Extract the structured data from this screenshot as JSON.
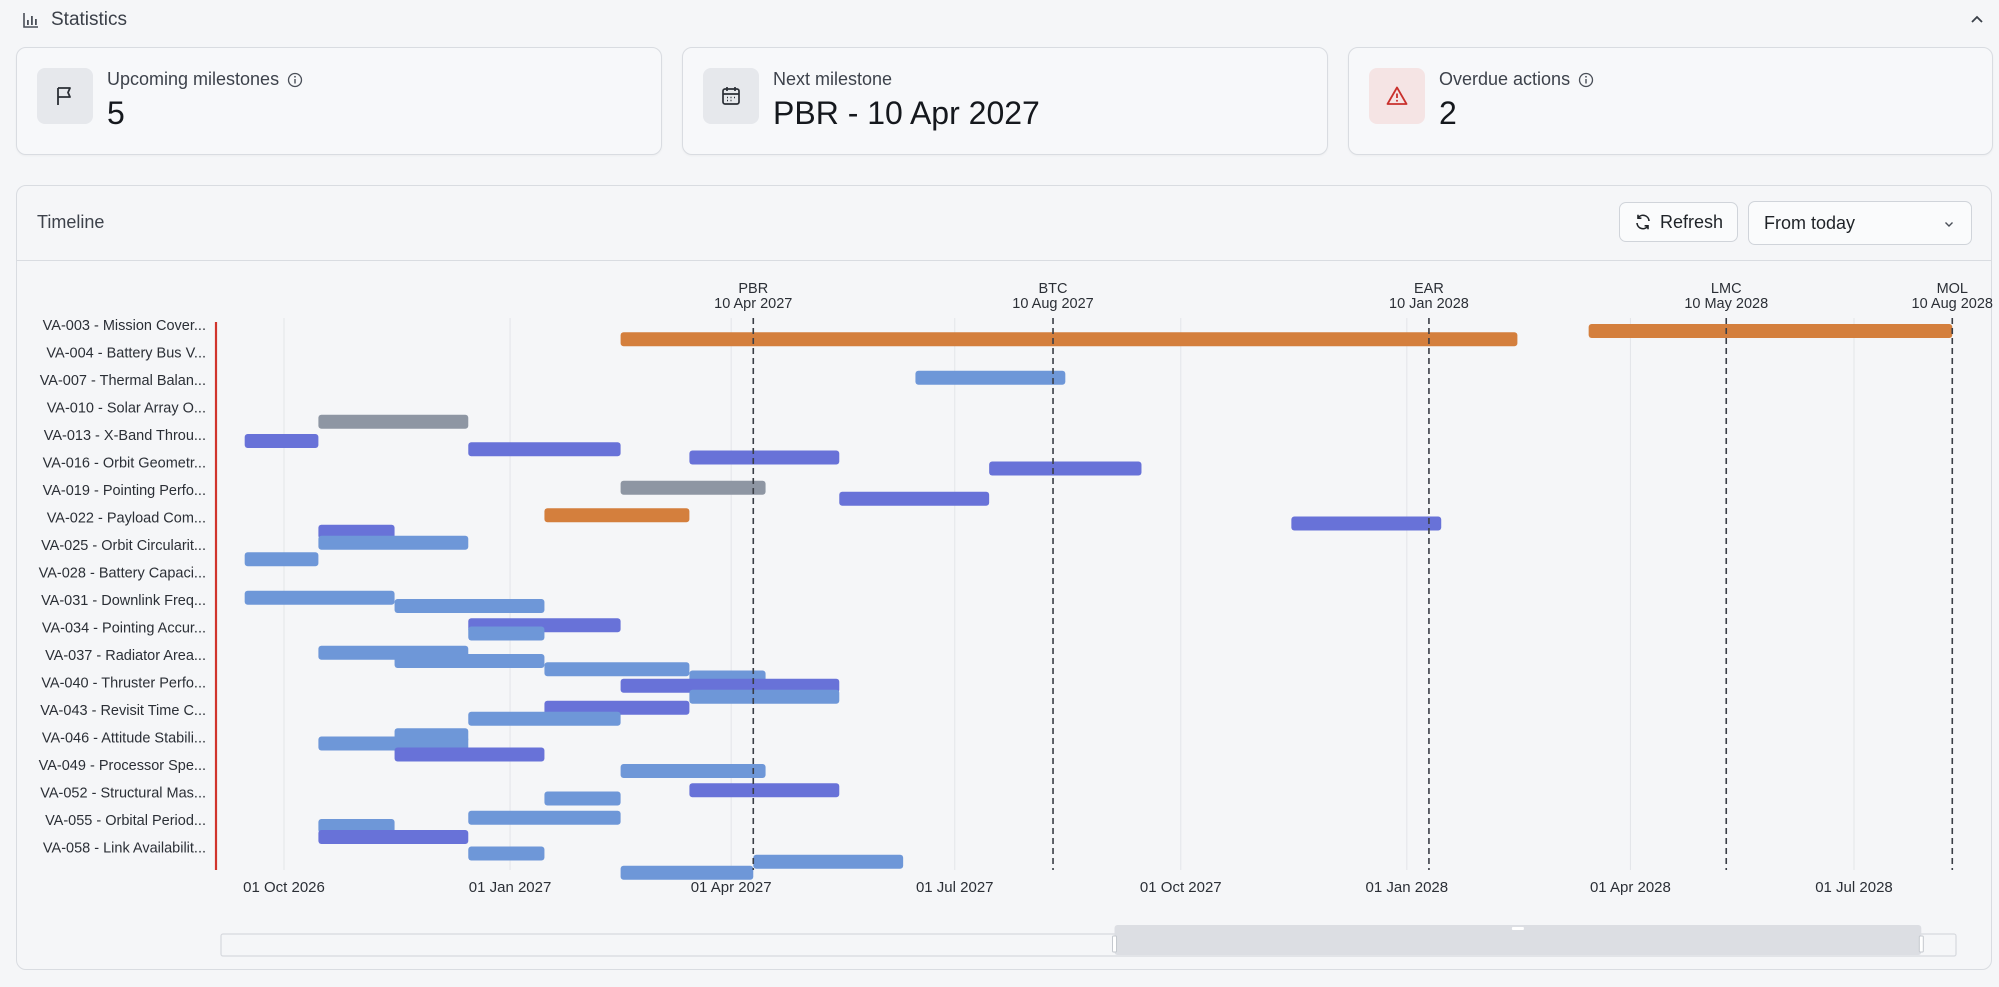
{
  "statistics": {
    "title": "Statistics",
    "cards": [
      {
        "label": "Upcoming milestones",
        "value": "5",
        "icon": "flag-icon"
      },
      {
        "label": "Next milestone",
        "value": "PBR - 10 Apr 2027",
        "icon": "calendar-icon"
      },
      {
        "label": "Overdue actions",
        "value": "2",
        "icon": "warning-triangle-icon"
      }
    ]
  },
  "timeline": {
    "title": "Timeline",
    "refresh_label": "Refresh",
    "range_select": "From today"
  },
  "colors": {
    "orange": "#d47f3d",
    "light_blue": "#6e97d8",
    "indigo": "#6872d8",
    "gray": "#8e96a3",
    "today_line": "#d0342c"
  },
  "chart_data": {
    "type": "gantt",
    "x_ticks": [
      "01 Oct 2026",
      "01 Jan 2027",
      "01 Apr 2027",
      "01 Jul 2027",
      "01 Oct 2027",
      "01 Jan 2028",
      "01 Apr 2028",
      "01 Jul 2028"
    ],
    "milestones": [
      {
        "name": "PBR",
        "date": "10 Apr 2027"
      },
      {
        "name": "BTC",
        "date": "10 Aug 2027"
      },
      {
        "name": "EAR",
        "date": "10 Jan 2028"
      },
      {
        "name": "LMC",
        "date": "10 May 2028"
      },
      {
        "name": "MOL",
        "date": "10 Aug 2028"
      }
    ],
    "rows": [
      "VA-003 - Mission Cover...",
      "VA-004 - Battery Bus V...",
      "VA-007 - Thermal Balan...",
      "VA-010 - Solar Array O...",
      "VA-013 - X-Band Throu...",
      "VA-016 - Orbit Geometr...",
      "VA-019 - Pointing Perfo...",
      "VA-022 - Payload Com...",
      "VA-025 - Orbit Circularit...",
      "VA-028 - Battery Capaci...",
      "VA-031 - Downlink Freq...",
      "VA-034 - Pointing Accur...",
      "VA-037 - Radiator Area...",
      "VA-040 - Thruster Perfo...",
      "VA-043 - Revisit Time C...",
      "VA-046 - Attitude Stabili...",
      "VA-049 - Processor Spe...",
      "VA-052 - Structural Mas...",
      "VA-055 - Orbital Period...",
      "VA-058 - Link Availabilit..."
    ],
    "bars": [
      {
        "start": "2027-02-15",
        "end": "2028-02-15",
        "color": "orange",
        "row": 0.3
      },
      {
        "start": "2028-03-15",
        "end": "2028-08-10",
        "color": "orange",
        "row": 0.0
      },
      {
        "start": "2027-06-15",
        "end": "2027-08-15",
        "color": "light_blue",
        "row": 1.7
      },
      {
        "start": "2026-10-15",
        "end": "2026-12-15",
        "color": "gray",
        "row": 3.3
      },
      {
        "start": "2026-09-15",
        "end": "2026-10-15",
        "color": "indigo",
        "row": 4.0
      },
      {
        "start": "2026-12-15",
        "end": "2027-02-15",
        "color": "indigo",
        "row": 4.3
      },
      {
        "start": "2027-03-15",
        "end": "2027-05-15",
        "color": "indigo",
        "row": 4.6
      },
      {
        "start": "2027-07-15",
        "end": "2027-09-15",
        "color": "indigo",
        "row": 5.0
      },
      {
        "start": "2027-02-15",
        "end": "2027-04-15",
        "color": "gray",
        "row": 5.7
      },
      {
        "start": "2027-05-15",
        "end": "2027-07-15",
        "color": "indigo",
        "row": 6.1
      },
      {
        "start": "2027-01-15",
        "end": "2027-03-15",
        "color": "orange",
        "row": 6.7
      },
      {
        "start": "2027-11-15",
        "end": "2028-01-15",
        "color": "indigo",
        "row": 7.0
      },
      {
        "start": "2026-10-15",
        "end": "2026-11-15",
        "color": "indigo",
        "row": 7.3
      },
      {
        "start": "2026-10-15",
        "end": "2026-12-15",
        "color": "light_blue",
        "row": 7.7
      },
      {
        "start": "2026-09-15",
        "end": "2026-10-15",
        "color": "light_blue",
        "row": 8.3
      },
      {
        "start": "2026-09-15",
        "end": "2026-11-15",
        "color": "light_blue",
        "row": 9.7
      },
      {
        "start": "2026-11-15",
        "end": "2027-01-15",
        "color": "light_blue",
        "row": 10.0
      },
      {
        "start": "2026-12-15",
        "end": "2027-02-15",
        "color": "indigo",
        "row": 10.7
      },
      {
        "start": "2026-12-15",
        "end": "2027-01-15",
        "color": "light_blue",
        "row": 11.0
      },
      {
        "start": "2026-10-15",
        "end": "2026-12-15",
        "color": "light_blue",
        "row": 11.7
      },
      {
        "start": "2026-11-15",
        "end": "2027-01-15",
        "color": "light_blue",
        "row": 12.0
      },
      {
        "start": "2027-01-15",
        "end": "2027-03-15",
        "color": "light_blue",
        "row": 12.3
      },
      {
        "start": "2027-03-15",
        "end": "2027-04-15",
        "color": "light_blue",
        "row": 12.6
      },
      {
        "start": "2027-02-15",
        "end": "2027-05-15",
        "color": "indigo",
        "row": 12.9
      },
      {
        "start": "2027-03-15",
        "end": "2027-05-15",
        "color": "light_blue",
        "row": 13.3
      },
      {
        "start": "2027-01-15",
        "end": "2027-03-15",
        "color": "indigo",
        "row": 13.7
      },
      {
        "start": "2026-12-15",
        "end": "2027-02-15",
        "color": "light_blue",
        "row": 14.1
      },
      {
        "start": "2026-11-15",
        "end": "2026-12-15",
        "color": "light_blue",
        "row": 14.7
      },
      {
        "start": "2026-10-15",
        "end": "2026-12-15",
        "color": "light_blue",
        "row": 15.0
      },
      {
        "start": "2026-11-15",
        "end": "2027-01-15",
        "color": "indigo",
        "row": 15.4
      },
      {
        "start": "2027-02-15",
        "end": "2027-04-15",
        "color": "light_blue",
        "row": 16.0
      },
      {
        "start": "2027-03-15",
        "end": "2027-05-15",
        "color": "indigo",
        "row": 16.7
      },
      {
        "start": "2027-01-15",
        "end": "2027-02-15",
        "color": "light_blue",
        "row": 17.0
      },
      {
        "start": "2026-12-15",
        "end": "2027-02-15",
        "color": "light_blue",
        "row": 17.7
      },
      {
        "start": "2026-10-15",
        "end": "2026-11-15",
        "color": "light_blue",
        "row": 18.0
      },
      {
        "start": "2026-10-15",
        "end": "2026-12-15",
        "color": "indigo",
        "row": 18.4
      },
      {
        "start": "2026-12-15",
        "end": "2027-01-15",
        "color": "light_blue",
        "row": 19.0
      },
      {
        "start": "2027-04-10",
        "end": "2027-06-10",
        "color": "light_blue",
        "row": 19.3
      },
      {
        "start": "2027-02-15",
        "end": "2027-04-10",
        "color": "light_blue",
        "row": 19.7
      }
    ],
    "view_window": {
      "start_fraction": 0.515,
      "end_fraction": 0.98
    }
  }
}
